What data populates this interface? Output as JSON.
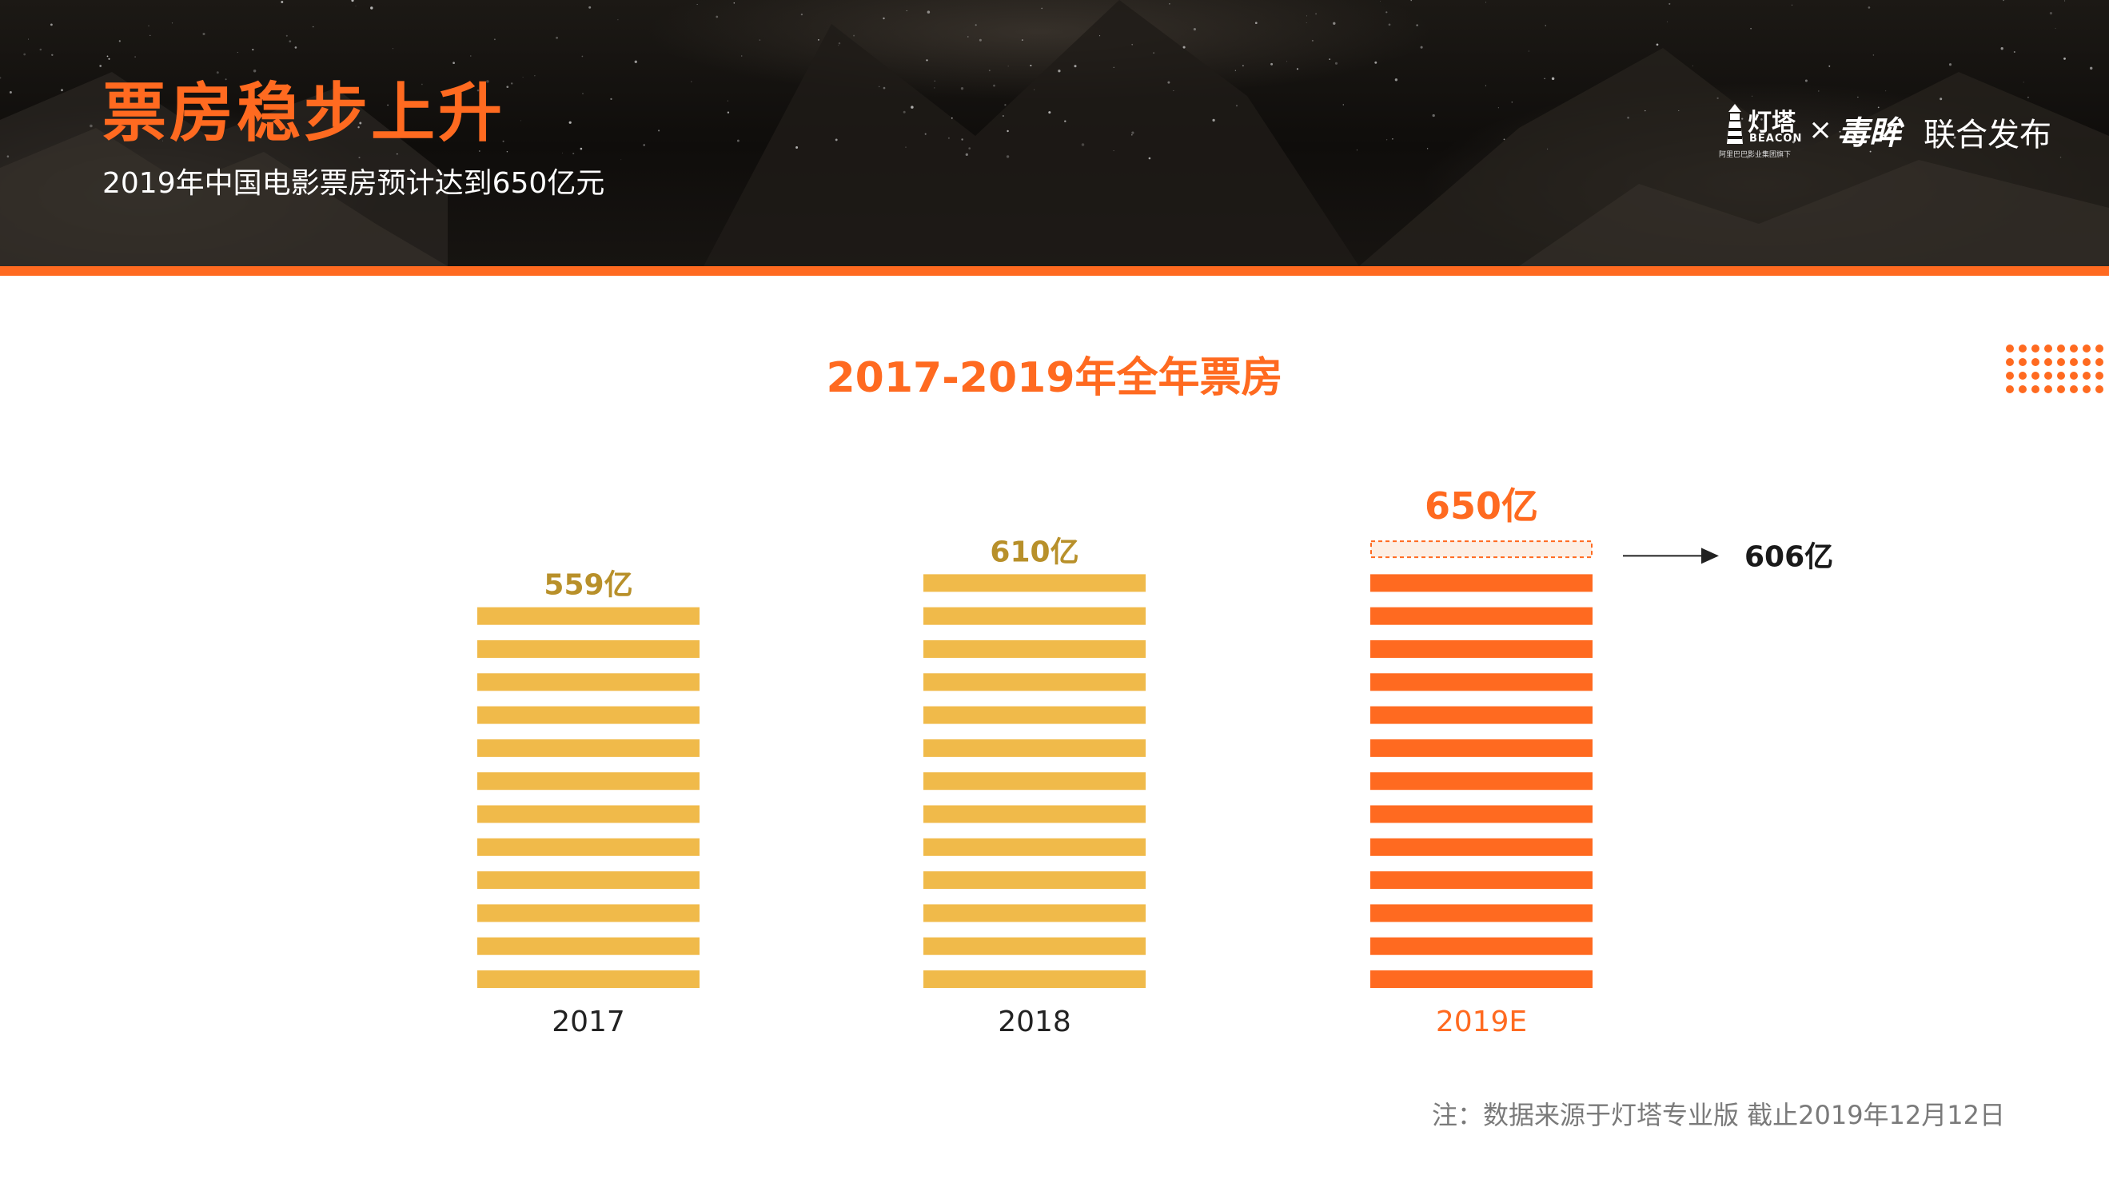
{
  "header": {
    "title": "票房稳步上升",
    "subtitle": "2019年中国电影票房预计达到650亿元",
    "brand": {
      "beacon_cn": "灯塔",
      "beacon_en": "BEACON",
      "beacon_small": "阿里巴巴影业集团旗下",
      "cross": "×",
      "maoyan": "毒眸",
      "joint_release": "联合发布"
    }
  },
  "colors": {
    "accent_orange": "#ff6a20",
    "bar_gold": "#f0ba4a",
    "label_gold": "#b8902a",
    "projection_fill": "#fcefe5"
  },
  "chart_data": {
    "type": "bar",
    "title": "2017-2019年全年票房",
    "categories": [
      "2017",
      "2018",
      "2019E"
    ],
    "values": [
      559,
      610,
      650
    ],
    "value_labels": [
      "559亿",
      "610亿",
      "650亿"
    ],
    "unit": "亿",
    "annotation": {
      "category": "2019E",
      "value": 606,
      "label": "606亿"
    },
    "xlabel": "",
    "ylabel": "",
    "grid": false,
    "legend": "none"
  },
  "footer": {
    "note": "注：数据来源于灯塔专业版 截止2019年12月12日"
  }
}
